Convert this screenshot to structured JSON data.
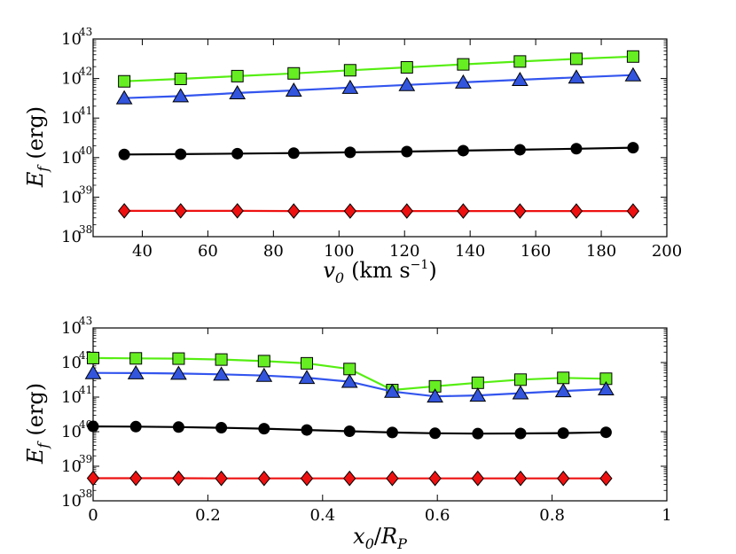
{
  "chart_data": [
    {
      "type": "line",
      "title": "",
      "ylabel": "E_f (erg)",
      "xlabel": "v_0 (km s^-1)",
      "yscale": "log",
      "xlim": [
        25,
        200
      ],
      "ylim_exp": [
        38,
        43
      ],
      "x_ticks": [
        40,
        60,
        80,
        100,
        120,
        140,
        160,
        180,
        200
      ],
      "y_ticks": [
        38,
        39,
        40,
        41,
        42,
        43
      ],
      "tick_base": "10",
      "ylabel_parts": {
        "sym": "E",
        "sub": "f",
        "unit": "(erg)"
      },
      "xlabel_parts": {
        "sym": "v",
        "sub": "0",
        "unit_text": "(km s",
        "unit_exp": "−1",
        "close": ")"
      },
      "x": [
        34.5,
        51.7,
        69.0,
        86.2,
        103.4,
        120.7,
        137.9,
        155.2,
        172.4,
        189.7
      ],
      "series": [
        {
          "name": "green-squares",
          "marker": "square",
          "color": "#66ee22",
          "stroke": "#000000",
          "line": "#55ee11",
          "values": [
            8.5e+41,
            9.8e+41,
            1.15e+42,
            1.35e+42,
            1.62e+42,
            1.92e+42,
            2.28e+42,
            2.7e+42,
            3.15e+42,
            3.6e+42
          ]
        },
        {
          "name": "blue-triangles",
          "marker": "triangle",
          "color": "#3355dd",
          "stroke": "#000000",
          "line": "#3355ee",
          "values": [
            3.2e+41,
            3.6e+41,
            4.3e+41,
            5e+41,
            5.9e+41,
            6.9e+41,
            8e+41,
            9.3e+41,
            1.07e+42,
            1.22e+42
          ]
        },
        {
          "name": "black-circles",
          "marker": "circle",
          "color": "#000000",
          "stroke": "#000000",
          "line": "#000000",
          "values": [
            1.2e+40,
            1.22e+40,
            1.26e+40,
            1.3e+40,
            1.36e+40,
            1.42e+40,
            1.5e+40,
            1.58e+40,
            1.68e+40,
            1.78e+40
          ]
        },
        {
          "name": "red-diamonds",
          "marker": "diamond",
          "color": "#ee1111",
          "stroke": "#000000",
          "line": "#ee1111",
          "values": [
            4.5e+38,
            4.5e+38,
            4.5e+38,
            4.45e+38,
            4.45e+38,
            4.45e+38,
            4.45e+38,
            4.45e+38,
            4.45e+38,
            4.45e+38
          ]
        }
      ]
    },
    {
      "type": "line",
      "title": "",
      "ylabel": "E_f (erg)",
      "xlabel": "x_0/R_P",
      "yscale": "log",
      "xlim": [
        0,
        1
      ],
      "ylim_exp": [
        38,
        43
      ],
      "x_ticks": [
        0,
        0.2,
        0.4,
        0.6,
        0.8,
        1
      ],
      "x_tick_labels": [
        "0",
        "0.2",
        "0.4",
        "0.6",
        "0.8",
        "1"
      ],
      "y_ticks": [
        38,
        39,
        40,
        41,
        42,
        43
      ],
      "tick_base": "10",
      "ylabel_parts": {
        "sym": "E",
        "sub": "f",
        "unit": "(erg)"
      },
      "xlabel_parts": {
        "sym": "x",
        "sub": "0",
        "slash": "/",
        "sym2": "R",
        "sub2": "P"
      },
      "x": [
        0.0,
        0.0745,
        0.149,
        0.2235,
        0.298,
        0.3725,
        0.447,
        0.5215,
        0.596,
        0.6705,
        0.745,
        0.8195,
        0.894
      ],
      "series": [
        {
          "name": "green-squares",
          "marker": "square",
          "color": "#66ee22",
          "stroke": "#000000",
          "line": "#55ee11",
          "values": [
            1.35e+42,
            1.32e+42,
            1.3e+42,
            1.22e+42,
            1.1e+42,
            9.5e+41,
            6.5e+41,
            1.6e+41,
            2.05e+41,
            2.6e+41,
            3.2e+41,
            3.6e+41,
            3.4e+41
          ]
        },
        {
          "name": "blue-triangles",
          "marker": "triangle",
          "color": "#3355dd",
          "stroke": "#000000",
          "line": "#3355ee",
          "values": [
            5e+41,
            4.95e+41,
            4.8e+41,
            4.55e+41,
            4.2e+41,
            3.65e+41,
            2.8e+41,
            1.45e+41,
            1.05e+41,
            1.12e+41,
            1.3e+41,
            1.5e+41,
            1.7e+41
          ]
        },
        {
          "name": "black-circles",
          "marker": "circle",
          "color": "#000000",
          "stroke": "#000000",
          "line": "#000000",
          "values": [
            1.42e+40,
            1.4e+40,
            1.36e+40,
            1.3e+40,
            1.22e+40,
            1.12e+40,
            1.03e+40,
            9.5e+39,
            9e+39,
            8.8e+39,
            8.9e+39,
            9.1e+39,
            9.6e+39
          ]
        },
        {
          "name": "red-diamonds",
          "marker": "diamond",
          "color": "#ee1111",
          "stroke": "#000000",
          "line": "#ee1111",
          "values": [
            4.5e+38,
            4.5e+38,
            4.5e+38,
            4.45e+38,
            4.45e+38,
            4.45e+38,
            4.45e+38,
            4.45e+38,
            4.45e+38,
            4.45e+38,
            4.45e+38,
            4.45e+38,
            4.45e+38
          ]
        }
      ]
    }
  ]
}
